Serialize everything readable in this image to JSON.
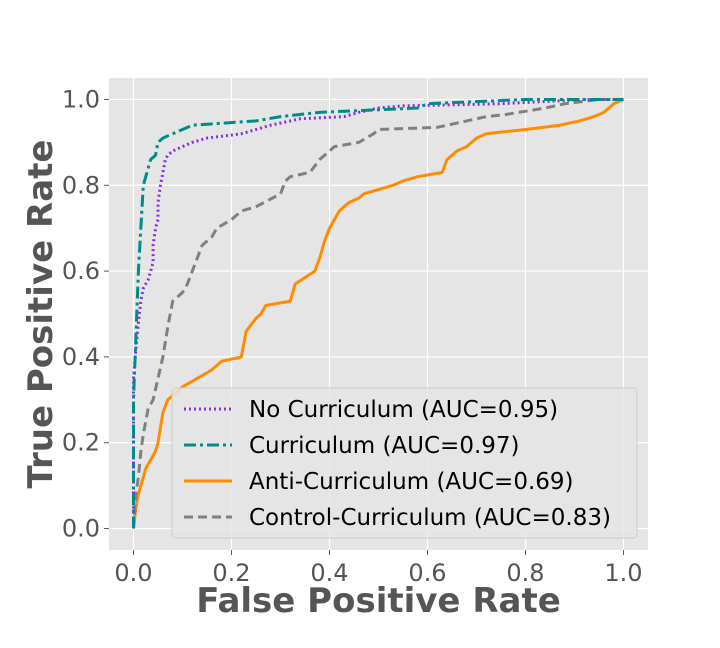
{
  "chart_data": {
    "type": "line",
    "title": "",
    "xlabel": "False Positive Rate",
    "ylabel": "True Positive Rate",
    "xlim": [
      -0.05,
      1.05
    ],
    "ylim": [
      -0.05,
      1.05
    ],
    "xticks": [
      0.0,
      0.2,
      0.4,
      0.6,
      0.8,
      1.0
    ],
    "yticks": [
      0.0,
      0.2,
      0.4,
      0.6,
      0.8,
      1.0
    ],
    "xtick_labels": [
      "0.0",
      "0.2",
      "0.4",
      "0.6",
      "0.8",
      "1.0"
    ],
    "ytick_labels": [
      "0.0",
      "0.2",
      "0.4",
      "0.6",
      "0.8",
      "1.0"
    ],
    "grid": true,
    "legend_position": "lower-right",
    "background": "#e5e5e5",
    "series": [
      {
        "name": "No Curriculum (AUC=0.95)",
        "color": "#8a2be2",
        "dash": "dotted",
        "points": [
          [
            0,
            0
          ],
          [
            0,
            0.35
          ],
          [
            0.005,
            0.42
          ],
          [
            0.01,
            0.48
          ],
          [
            0.015,
            0.53
          ],
          [
            0.02,
            0.56
          ],
          [
            0.03,
            0.58
          ],
          [
            0.035,
            0.6
          ],
          [
            0.04,
            0.62
          ],
          [
            0.04,
            0.66
          ],
          [
            0.045,
            0.7
          ],
          [
            0.05,
            0.72
          ],
          [
            0.05,
            0.76
          ],
          [
            0.055,
            0.8
          ],
          [
            0.06,
            0.83
          ],
          [
            0.065,
            0.86
          ],
          [
            0.07,
            0.87
          ],
          [
            0.08,
            0.88
          ],
          [
            0.1,
            0.89
          ],
          [
            0.12,
            0.9
          ],
          [
            0.15,
            0.91
          ],
          [
            0.22,
            0.92
          ],
          [
            0.28,
            0.94
          ],
          [
            0.34,
            0.955
          ],
          [
            0.43,
            0.96
          ],
          [
            0.46,
            0.97
          ],
          [
            0.5,
            0.98
          ],
          [
            0.55,
            0.985
          ],
          [
            0.75,
            0.99
          ],
          [
            0.92,
            1.0
          ],
          [
            1,
            1.0
          ]
        ]
      },
      {
        "name": "Curriculum (AUC=0.97)",
        "color": "#008b8b",
        "dash": "dashdot",
        "points": [
          [
            0,
            0
          ],
          [
            0,
            0.3
          ],
          [
            0.005,
            0.45
          ],
          [
            0.01,
            0.6
          ],
          [
            0.015,
            0.7
          ],
          [
            0.02,
            0.8
          ],
          [
            0.025,
            0.82
          ],
          [
            0.03,
            0.84
          ],
          [
            0.035,
            0.86
          ],
          [
            0.045,
            0.87
          ],
          [
            0.05,
            0.9
          ],
          [
            0.06,
            0.91
          ],
          [
            0.08,
            0.92
          ],
          [
            0.1,
            0.93
          ],
          [
            0.12,
            0.94
          ],
          [
            0.25,
            0.95
          ],
          [
            0.3,
            0.96
          ],
          [
            0.38,
            0.97
          ],
          [
            0.58,
            0.98
          ],
          [
            0.6,
            0.99
          ],
          [
            0.8,
            1.0
          ],
          [
            1,
            1.0
          ]
        ]
      },
      {
        "name": "Anti-Curriculum (AUC=0.69)",
        "color": "#ff8c00",
        "dash": "solid",
        "points": [
          [
            0,
            0
          ],
          [
            0.005,
            0.05
          ],
          [
            0.01,
            0.08
          ],
          [
            0.015,
            0.1
          ],
          [
            0.02,
            0.12
          ],
          [
            0.025,
            0.14
          ],
          [
            0.035,
            0.16
          ],
          [
            0.045,
            0.18
          ],
          [
            0.05,
            0.2
          ],
          [
            0.06,
            0.27
          ],
          [
            0.07,
            0.3
          ],
          [
            0.08,
            0.31
          ],
          [
            0.1,
            0.33
          ],
          [
            0.13,
            0.35
          ],
          [
            0.16,
            0.37
          ],
          [
            0.18,
            0.39
          ],
          [
            0.22,
            0.4
          ],
          [
            0.23,
            0.46
          ],
          [
            0.25,
            0.49
          ],
          [
            0.26,
            0.5
          ],
          [
            0.27,
            0.52
          ],
          [
            0.32,
            0.53
          ],
          [
            0.33,
            0.57
          ],
          [
            0.37,
            0.6
          ],
          [
            0.38,
            0.63
          ],
          [
            0.39,
            0.67
          ],
          [
            0.4,
            0.7
          ],
          [
            0.41,
            0.72
          ],
          [
            0.42,
            0.74
          ],
          [
            0.44,
            0.76
          ],
          [
            0.46,
            0.77
          ],
          [
            0.47,
            0.78
          ],
          [
            0.53,
            0.8
          ],
          [
            0.55,
            0.81
          ],
          [
            0.58,
            0.82
          ],
          [
            0.63,
            0.83
          ],
          [
            0.64,
            0.86
          ],
          [
            0.66,
            0.88
          ],
          [
            0.68,
            0.89
          ],
          [
            0.7,
            0.91
          ],
          [
            0.72,
            0.92
          ],
          [
            0.8,
            0.93
          ],
          [
            0.87,
            0.94
          ],
          [
            0.91,
            0.95
          ],
          [
            0.94,
            0.96
          ],
          [
            0.96,
            0.97
          ],
          [
            0.97,
            0.98
          ],
          [
            0.98,
            0.99
          ],
          [
            1,
            1.0
          ]
        ]
      },
      {
        "name": "Control-Curriculum (AUC=0.83)",
        "color": "#808080",
        "dash": "dashed",
        "points": [
          [
            0,
            0
          ],
          [
            0.005,
            0.08
          ],
          [
            0.01,
            0.12
          ],
          [
            0.015,
            0.18
          ],
          [
            0.02,
            0.22
          ],
          [
            0.03,
            0.28
          ],
          [
            0.04,
            0.3
          ],
          [
            0.05,
            0.35
          ],
          [
            0.06,
            0.4
          ],
          [
            0.07,
            0.47
          ],
          [
            0.08,
            0.53
          ],
          [
            0.1,
            0.55
          ],
          [
            0.11,
            0.57
          ],
          [
            0.12,
            0.6
          ],
          [
            0.13,
            0.63
          ],
          [
            0.14,
            0.66
          ],
          [
            0.16,
            0.68
          ],
          [
            0.17,
            0.7
          ],
          [
            0.2,
            0.72
          ],
          [
            0.22,
            0.74
          ],
          [
            0.25,
            0.75
          ],
          [
            0.3,
            0.78
          ],
          [
            0.31,
            0.81
          ],
          [
            0.32,
            0.82
          ],
          [
            0.36,
            0.83
          ],
          [
            0.38,
            0.86
          ],
          [
            0.4,
            0.88
          ],
          [
            0.41,
            0.89
          ],
          [
            0.46,
            0.9
          ],
          [
            0.49,
            0.92
          ],
          [
            0.5,
            0.93
          ],
          [
            0.62,
            0.935
          ],
          [
            0.68,
            0.95
          ],
          [
            0.72,
            0.96
          ],
          [
            0.76,
            0.965
          ],
          [
            0.84,
            0.98
          ],
          [
            0.88,
            0.99
          ],
          [
            0.95,
            1.0
          ],
          [
            1,
            1.0
          ]
        ]
      }
    ]
  }
}
